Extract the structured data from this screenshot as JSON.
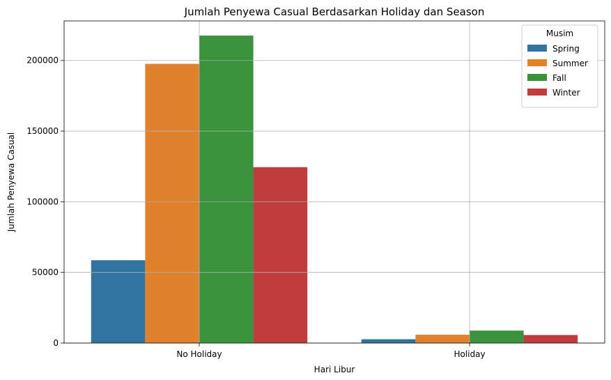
{
  "chart_data": {
    "type": "bar",
    "title": "Jumlah Penyewa Casual Berdasarkan Holiday dan Season",
    "xlabel": "Hari Libur",
    "ylabel": "Jumlah Penyewa Casual",
    "categories": [
      "No Holiday",
      "Holiday"
    ],
    "ylim": [
      0,
      228000
    ],
    "yticks": [
      0,
      50000,
      100000,
      150000,
      200000
    ],
    "ytick_labels": [
      "0",
      "50000",
      "100000",
      "150000",
      "200000"
    ],
    "grid": true,
    "legend": {
      "title": "Musim",
      "placement": "top-right"
    },
    "series": [
      {
        "name": "Spring",
        "color": "#3274a1",
        "values": [
          58600,
          2700
        ]
      },
      {
        "name": "Summer",
        "color": "#e1812c",
        "values": [
          197600,
          5900
        ]
      },
      {
        "name": "Fall",
        "color": "#3a923a",
        "values": [
          217600,
          8800
        ]
      },
      {
        "name": "Winter",
        "color": "#c03d3e",
        "values": [
          124500,
          5700
        ]
      }
    ]
  }
}
